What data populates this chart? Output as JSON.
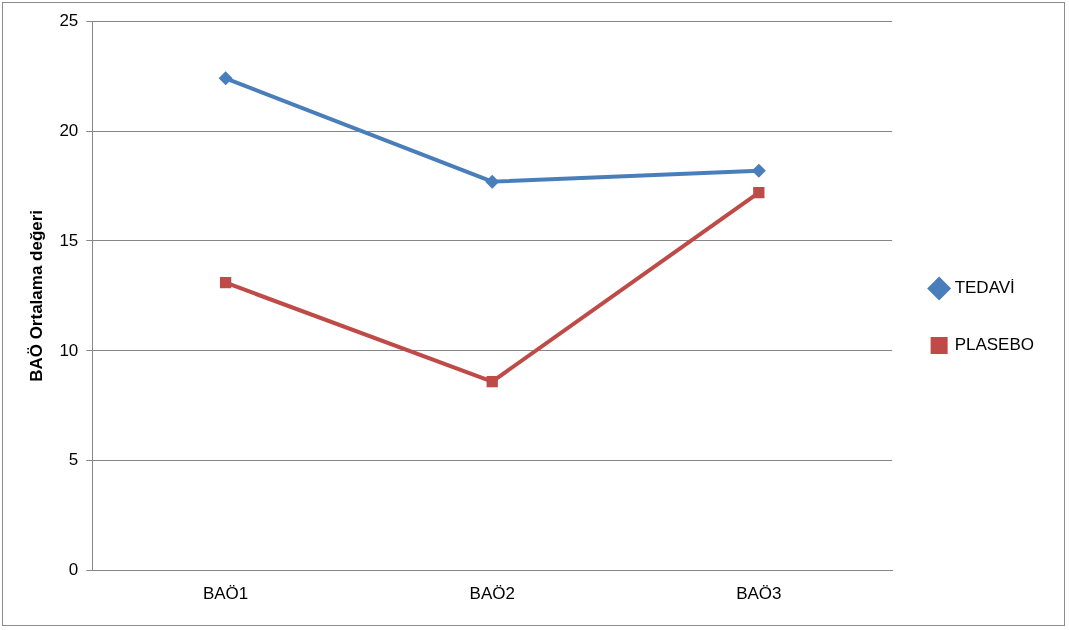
{
  "chart_data": {
    "type": "line",
    "ylabel": "BAÖ Ortalama değeri",
    "categories": [
      "BAÖ1",
      "BAÖ2",
      "BAÖ3"
    ],
    "series": [
      {
        "name": "TEDAVİ",
        "color": "#4a7ebb",
        "values": [
          22.4,
          17.7,
          18.2
        ],
        "marker": "diamond"
      },
      {
        "name": "PLASEBO",
        "color": "#be4b48",
        "values": [
          13.1,
          8.6,
          17.2
        ],
        "marker": "square"
      }
    ],
    "ylim": [
      0,
      25
    ],
    "yticks": [
      0,
      5,
      10,
      15,
      20,
      25
    ],
    "grid": "y",
    "legend": "right",
    "line_style": "solid"
  }
}
